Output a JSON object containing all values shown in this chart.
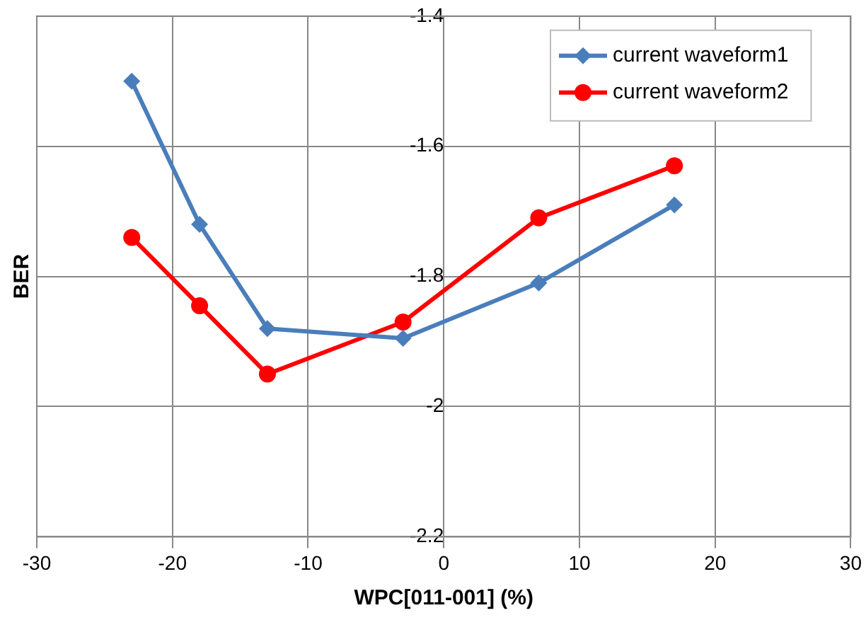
{
  "chart_data": {
    "type": "line",
    "xlabel": "WPC[011-001] (%)",
    "ylabel": "BER",
    "xlim": [
      -30,
      30
    ],
    "xticks": [
      -30,
      -20,
      -10,
      0,
      10,
      20,
      30
    ],
    "ylim": [
      -2.2,
      -1.4
    ],
    "yticks": [
      -2.2,
      -2,
      -1.8,
      -1.6,
      -1.4
    ],
    "grid": true,
    "legend": "top right",
    "series": [
      {
        "name": "current waveform1",
        "color": "#4a7ebb",
        "marker": "diamond",
        "x": [
          -23,
          -18,
          -13,
          -3,
          7,
          17
        ],
        "values": [
          -1.5,
          -1.72,
          -1.88,
          -1.895,
          -1.81,
          -1.69
        ]
      },
      {
        "name": "current waveform2",
        "color": "#ff0000",
        "marker": "circle",
        "x": [
          -23,
          -18,
          -13,
          -3,
          7,
          17
        ],
        "values": [
          -1.74,
          -1.845,
          -1.95,
          -1.87,
          -1.71,
          -1.63
        ]
      }
    ]
  }
}
